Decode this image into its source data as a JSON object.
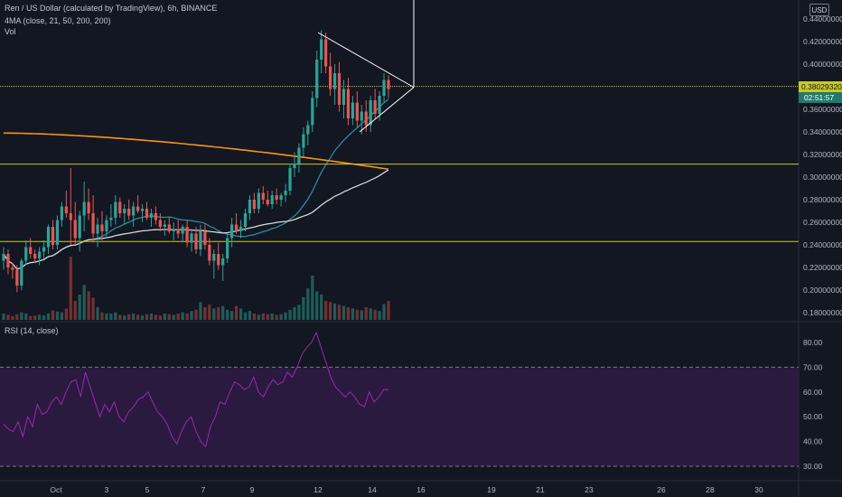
{
  "header": {
    "symbol": "Ren / US Dollar (calculated by TradingView), 6h, BINANCE",
    "ma_legend": "4MA (close, 21, 50, 200, 200)",
    "vol_legend": "Vol",
    "rsi_legend": "RSI (14, close)"
  },
  "currency_button": "USD",
  "price_tag": "0.38029320",
  "countdown_tag": "02:51:57",
  "colors": {
    "background": "#131722",
    "up": "#26a69a",
    "down": "#ef5350",
    "ma21": "#2a8a9e",
    "ma50": "#d6d6d6",
    "ma200": "#f7931a",
    "hline": "#c9c927",
    "rsi_line": "#9c27b0",
    "rsi_band": "#2a1a3f",
    "trendline": "#ffffff"
  },
  "chart_data": [
    {
      "type": "candlestick",
      "title": "Ren / US Dollar (calculated by TradingView), 6h, BINANCE",
      "y_ticks": [
        "0.44000000",
        "0.42000000",
        "0.40000000",
        "0.38000000",
        "0.36000000",
        "0.34000000",
        "0.32000000",
        "0.30000000",
        "0.28000000",
        "0.26000000",
        "0.24000000",
        "0.22000000",
        "0.20000000",
        "0.18000000"
      ],
      "x_ticks": [
        "Oct",
        "3",
        "5",
        "7",
        "9",
        "12",
        "14",
        "16",
        "19",
        "21",
        "23",
        "26",
        "28",
        "30"
      ],
      "ylim": [
        0.176,
        0.448
      ],
      "horizontal_levels": [
        0.3803,
        0.3115,
        0.243
      ],
      "candles": [
        [
          0.226,
          0.238,
          0.218,
          0.232
        ],
        [
          0.232,
          0.236,
          0.214,
          0.22
        ],
        [
          0.22,
          0.224,
          0.21,
          0.218
        ],
        [
          0.218,
          0.222,
          0.198,
          0.204
        ],
        [
          0.204,
          0.228,
          0.2,
          0.226
        ],
        [
          0.226,
          0.244,
          0.222,
          0.238
        ],
        [
          0.238,
          0.246,
          0.228,
          0.232
        ],
        [
          0.232,
          0.236,
          0.224,
          0.228
        ],
        [
          0.228,
          0.238,
          0.222,
          0.234
        ],
        [
          0.234,
          0.244,
          0.228,
          0.238
        ],
        [
          0.238,
          0.258,
          0.232,
          0.256
        ],
        [
          0.256,
          0.262,
          0.236,
          0.24
        ],
        [
          0.24,
          0.266,
          0.236,
          0.262
        ],
        [
          0.262,
          0.278,
          0.256,
          0.274
        ],
        [
          0.274,
          0.288,
          0.264,
          0.268
        ],
        [
          0.268,
          0.308,
          0.24,
          0.262
        ],
        [
          0.262,
          0.278,
          0.24,
          0.246
        ],
        [
          0.246,
          0.27,
          0.234,
          0.266
        ],
        [
          0.266,
          0.296,
          0.252,
          0.278
        ],
        [
          0.278,
          0.29,
          0.262,
          0.268
        ],
        [
          0.268,
          0.284,
          0.242,
          0.25
        ],
        [
          0.25,
          0.264,
          0.238,
          0.258
        ],
        [
          0.258,
          0.27,
          0.244,
          0.252
        ],
        [
          0.252,
          0.266,
          0.246,
          0.262
        ],
        [
          0.262,
          0.276,
          0.256,
          0.264
        ],
        [
          0.264,
          0.284,
          0.258,
          0.278
        ],
        [
          0.278,
          0.282,
          0.264,
          0.268
        ],
        [
          0.268,
          0.276,
          0.258,
          0.272
        ],
        [
          0.272,
          0.28,
          0.262,
          0.266
        ],
        [
          0.266,
          0.278,
          0.256,
          0.274
        ],
        [
          0.274,
          0.284,
          0.268,
          0.27
        ],
        [
          0.27,
          0.276,
          0.26,
          0.272
        ],
        [
          0.272,
          0.278,
          0.262,
          0.264
        ],
        [
          0.264,
          0.272,
          0.256,
          0.268
        ],
        [
          0.268,
          0.274,
          0.258,
          0.262
        ],
        [
          0.262,
          0.268,
          0.252,
          0.256
        ],
        [
          0.256,
          0.262,
          0.248,
          0.258
        ],
        [
          0.258,
          0.264,
          0.25,
          0.252
        ],
        [
          0.252,
          0.26,
          0.244,
          0.254
        ],
        [
          0.254,
          0.262,
          0.246,
          0.25
        ],
        [
          0.25,
          0.258,
          0.242,
          0.256
        ],
        [
          0.256,
          0.262,
          0.238,
          0.242
        ],
        [
          0.242,
          0.254,
          0.234,
          0.25
        ],
        [
          0.25,
          0.256,
          0.232,
          0.236
        ],
        [
          0.236,
          0.258,
          0.23,
          0.252
        ],
        [
          0.252,
          0.258,
          0.236,
          0.24
        ],
        [
          0.24,
          0.246,
          0.222,
          0.226
        ],
        [
          0.226,
          0.236,
          0.21,
          0.232
        ],
        [
          0.232,
          0.242,
          0.218,
          0.222
        ],
        [
          0.222,
          0.232,
          0.208,
          0.228
        ],
        [
          0.228,
          0.25,
          0.224,
          0.246
        ],
        [
          0.246,
          0.264,
          0.238,
          0.258
        ],
        [
          0.258,
          0.268,
          0.25,
          0.252
        ],
        [
          0.252,
          0.262,
          0.246,
          0.256
        ],
        [
          0.256,
          0.272,
          0.252,
          0.268
        ],
        [
          0.268,
          0.284,
          0.262,
          0.28
        ],
        [
          0.28,
          0.286,
          0.268,
          0.272
        ],
        [
          0.272,
          0.29,
          0.268,
          0.286
        ],
        [
          0.286,
          0.292,
          0.276,
          0.28
        ],
        [
          0.28,
          0.288,
          0.274,
          0.276
        ],
        [
          0.276,
          0.288,
          0.272,
          0.284
        ],
        [
          0.284,
          0.29,
          0.276,
          0.28
        ],
        [
          0.28,
          0.286,
          0.274,
          0.284
        ],
        [
          0.284,
          0.294,
          0.278,
          0.288
        ],
        [
          0.288,
          0.312,
          0.284,
          0.308
        ],
        [
          0.308,
          0.322,
          0.3,
          0.312
        ],
        [
          0.312,
          0.33,
          0.304,
          0.326
        ],
        [
          0.326,
          0.344,
          0.318,
          0.338
        ],
        [
          0.338,
          0.35,
          0.328,
          0.346
        ],
        [
          0.346,
          0.376,
          0.34,
          0.37
        ],
        [
          0.37,
          0.412,
          0.362,
          0.404
        ],
        [
          0.404,
          0.43,
          0.392,
          0.422
        ],
        [
          0.422,
          0.428,
          0.392,
          0.398
        ],
        [
          0.398,
          0.41,
          0.372,
          0.378
        ],
        [
          0.378,
          0.4,
          0.364,
          0.392
        ],
        [
          0.392,
          0.402,
          0.358,
          0.364
        ],
        [
          0.364,
          0.386,
          0.352,
          0.378
        ],
        [
          0.378,
          0.388,
          0.346,
          0.352
        ],
        [
          0.352,
          0.372,
          0.346,
          0.366
        ],
        [
          0.366,
          0.376,
          0.344,
          0.35
        ],
        [
          0.35,
          0.364,
          0.338,
          0.358
        ],
        [
          0.358,
          0.368,
          0.34,
          0.346
        ],
        [
          0.346,
          0.372,
          0.34,
          0.368
        ],
        [
          0.368,
          0.378,
          0.352,
          0.356
        ],
        [
          0.356,
          0.376,
          0.35,
          0.372
        ],
        [
          0.372,
          0.392,
          0.366,
          0.386
        ],
        [
          0.386,
          0.39,
          0.37,
          0.378
        ]
      ],
      "volumes": [
        0.1,
        0.08,
        0.06,
        0.09,
        0.12,
        0.1,
        0.06,
        0.07,
        0.08,
        0.07,
        0.1,
        0.15,
        0.13,
        0.12,
        0.18,
        1.0,
        0.3,
        0.4,
        0.55,
        0.45,
        0.35,
        0.2,
        0.12,
        0.1,
        0.1,
        0.12,
        0.08,
        0.07,
        0.09,
        0.1,
        0.08,
        0.07,
        0.09,
        0.1,
        0.08,
        0.07,
        0.1,
        0.09,
        0.08,
        0.1,
        0.12,
        0.1,
        0.14,
        0.16,
        0.28,
        0.2,
        0.24,
        0.18,
        0.2,
        0.22,
        0.16,
        0.14,
        0.22,
        0.18,
        0.12,
        0.14,
        0.1,
        0.08,
        0.1,
        0.09,
        0.1,
        0.08,
        0.09,
        0.12,
        0.16,
        0.2,
        0.24,
        0.36,
        0.5,
        0.7,
        0.45,
        0.4,
        0.3,
        0.28,
        0.26,
        0.24,
        0.22,
        0.2,
        0.18,
        0.16,
        0.15,
        0.2,
        0.18,
        0.16,
        0.14,
        0.25,
        0.3
      ]
    },
    {
      "type": "line",
      "title": "RSI (14, close)",
      "y_ticks": [
        "80.00",
        "70.00",
        "60.00",
        "50.00",
        "40.00",
        "30.00"
      ],
      "ylim": [
        26,
        86
      ],
      "band": [
        30,
        70
      ],
      "values": [
        47,
        45,
        44,
        48,
        42,
        50,
        46,
        55,
        51,
        52,
        56,
        58,
        55,
        60,
        64,
        65,
        58,
        68,
        62,
        56,
        50,
        55,
        52,
        56,
        50,
        48,
        52,
        54,
        57,
        58,
        60,
        56,
        52,
        50,
        47,
        42,
        39,
        44,
        48,
        50,
        44,
        40,
        38,
        46,
        50,
        56,
        55,
        60,
        64,
        63,
        61,
        62,
        66,
        60,
        58,
        62,
        65,
        63,
        64,
        68,
        66,
        70,
        75,
        78,
        80,
        84,
        78,
        72,
        66,
        62,
        60,
        58,
        60,
        58,
        55,
        54,
        60,
        56,
        58,
        61,
        61
      ]
    }
  ]
}
